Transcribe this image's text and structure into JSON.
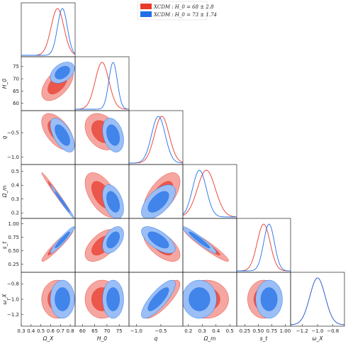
{
  "chart_data": {
    "type": "corner",
    "parameters": [
      {
        "key": "omega_x",
        "label": "Ω_X",
        "range": [
          0.3,
          0.85
        ],
        "ticks": [
          "0.3",
          "0.4",
          "0.5",
          "0.6",
          "0.7",
          "0.8"
        ]
      },
      {
        "key": "h0",
        "label": "H_0",
        "range": [
          57,
          79
        ],
        "ticks": [
          "60",
          "65",
          "70",
          "75"
        ]
      },
      {
        "key": "q",
        "label": "q",
        "range": [
          -1.15,
          -0.05
        ],
        "ticks": [
          "-1.0",
          "-0.5"
        ]
      },
      {
        "key": "omega_m",
        "label": "Ω_m",
        "range": [
          0.16,
          0.55
        ],
        "ticks": [
          "0.2",
          "0.3",
          "0.4",
          "0.5"
        ]
      },
      {
        "key": "s_t",
        "label": "s_t",
        "range": [
          0.1,
          1.1
        ],
        "ticks": [
          "0.25",
          "0.50",
          "0.75",
          "1.00"
        ]
      },
      {
        "key": "w_x",
        "label": "ω_X",
        "range": [
          -1.35,
          -0.65
        ],
        "ticks": [
          "-1.2",
          "-1.0",
          "-0.8"
        ]
      }
    ],
    "series": [
      {
        "name": "XCDM: H_0 = 68 ± 2.8",
        "color": "#e8392b",
        "means": {
          "omega_x": 0.67,
          "h0": 68,
          "q": -0.48,
          "omega_m": 0.33,
          "s_t": 0.6,
          "w_x": -1.0
        },
        "sigmas": {
          "omega_x": 0.065,
          "h0": 2.8,
          "q": 0.15,
          "omega_m": 0.065,
          "s_t": 0.12,
          "w_x": 0.1
        },
        "correlations": {
          "h0|omega_x": 0.55,
          "q|omega_x": -0.55,
          "omega_m|omega_x": -0.99,
          "s_t|omega_x": 0.95,
          "w_x|omega_x": 0.0,
          "q|h0": -0.3,
          "omega_m|h0": -0.55,
          "s_t|h0": 0.55,
          "w_x|h0": 0.0,
          "omega_m|q": 0.6,
          "s_t|q": -0.6,
          "w_x|q": 0.8,
          "s_t|omega_m": -0.95,
          "w_x|omega_m": 0.0,
          "w_x|s_t": 0.0
        }
      },
      {
        "name": "XCDM: H_0 = 73 ± 1.74",
        "color": "#1f6fe8",
        "means": {
          "omega_x": 0.72,
          "h0": 72.5,
          "q": -0.55,
          "omega_m": 0.28,
          "s_t": 0.7,
          "w_x": -1.0
        },
        "sigmas": {
          "omega_x": 0.05,
          "h0": 1.74,
          "q": 0.14,
          "omega_m": 0.05,
          "s_t": 0.1,
          "w_x": 0.1
        },
        "correlations": {
          "h0|omega_x": 0.4,
          "q|omega_x": -0.6,
          "omega_m|omega_x": -0.99,
          "s_t|omega_x": 0.95,
          "w_x|omega_x": 0.0,
          "q|h0": -0.3,
          "omega_m|h0": -0.4,
          "s_t|h0": 0.45,
          "w_x|h0": 0.0,
          "omega_m|q": 0.6,
          "s_t|q": -0.65,
          "w_x|q": 0.8,
          "s_t|omega_m": -0.95,
          "w_x|omega_m": 0.0,
          "w_x|s_t": 0.0
        }
      }
    ],
    "legend": "top-right",
    "grid": false
  },
  "legend": {
    "items": [
      {
        "label": "XCDM : H_0 = 68 ± 2.8",
        "color": "#e8392b"
      },
      {
        "label": "XCDM : H_0 = 73 ± 1.74",
        "color": "#1f6fe8"
      }
    ]
  }
}
